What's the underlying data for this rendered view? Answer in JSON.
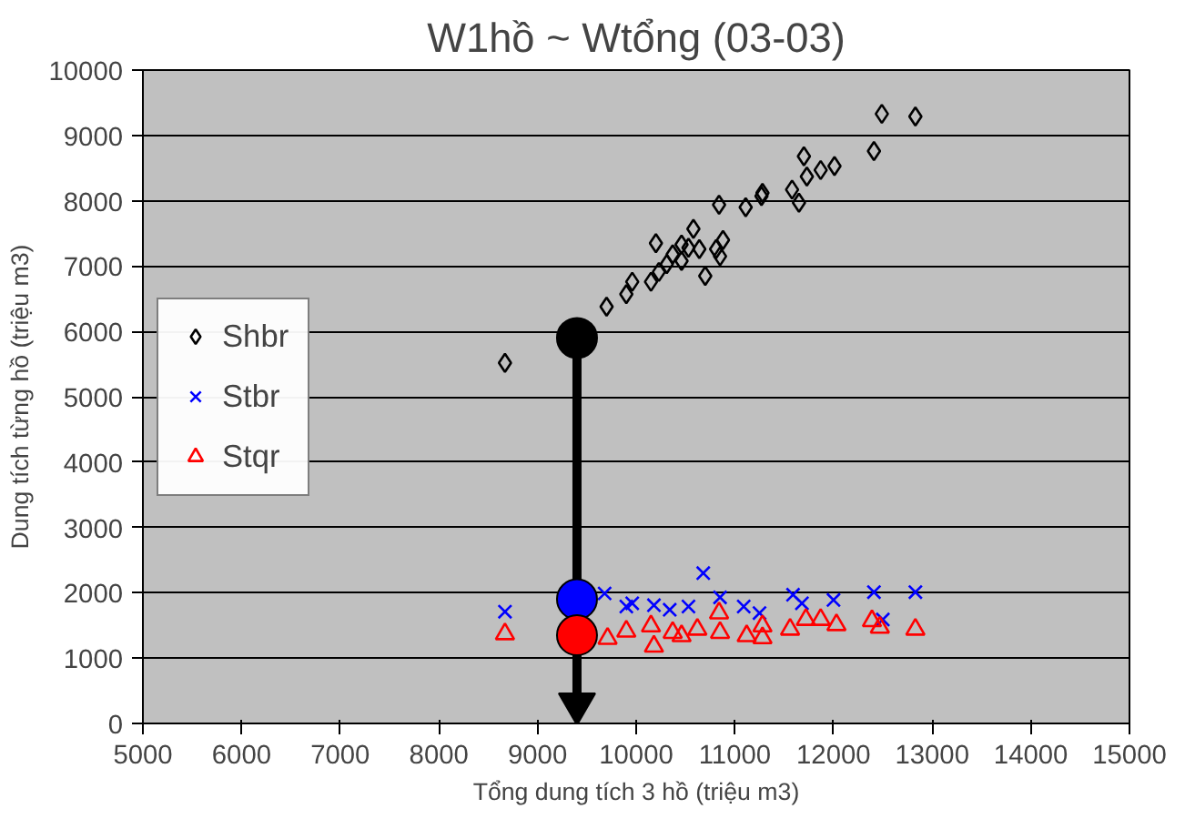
{
  "chart_data": {
    "type": "scatter",
    "title": "W1hồ ~ Wtổng (03-03)",
    "xlabel": "Tổng dung tích 3 hồ (triệu m3)",
    "ylabel": "Dung tích từng hồ (triệu m3)",
    "xlim": [
      5000,
      15000
    ],
    "ylim": [
      0,
      10000
    ],
    "xticks": [
      5000,
      6000,
      7000,
      8000,
      9000,
      10000,
      11000,
      12000,
      13000,
      14000,
      15000
    ],
    "yticks": [
      0,
      1000,
      2000,
      3000,
      4000,
      5000,
      6000,
      7000,
      8000,
      9000,
      10000
    ],
    "grid": "y",
    "legend": "left",
    "series": [
      {
        "name": "Shbr",
        "color": "#000000",
        "marker": "diamond",
        "x": [
          8670,
          9700,
          9900,
          9960,
          10150,
          10200,
          10230,
          10310,
          10370,
          10460,
          10530,
          10580,
          10460,
          10640,
          10700,
          10840,
          10810,
          10850,
          10880,
          11110,
          11280,
          11270,
          11580,
          11650,
          11700,
          11730,
          11870,
          12010,
          12410,
          12490,
          12830
        ],
        "values": [
          5520,
          6380,
          6570,
          6760,
          6760,
          7350,
          6910,
          7030,
          7180,
          7330,
          7280,
          7570,
          7080,
          7260,
          6850,
          7940,
          7260,
          7150,
          7400,
          7900,
          8120,
          8070,
          8170,
          7970,
          8680,
          8370,
          8470,
          8530,
          8760,
          9330,
          9290
        ]
      },
      {
        "name": "Stbr",
        "color": "#0000ff",
        "marker": "cross",
        "x": [
          8670,
          9680,
          9900,
          9960,
          10180,
          10340,
          10530,
          10680,
          10850,
          11090,
          11250,
          11590,
          11680,
          12000,
          12410,
          12500,
          12830
        ],
        "values": [
          1710,
          1990,
          1790,
          1840,
          1810,
          1740,
          1790,
          2300,
          1930,
          1790,
          1690,
          1970,
          1840,
          1890,
          2010,
          1590,
          2010
        ]
      },
      {
        "name": "Stqr",
        "color": "#ff0000",
        "marker": "triangle",
        "x": [
          8670,
          9710,
          9900,
          10180,
          10150,
          10370,
          10460,
          10620,
          10840,
          10850,
          11120,
          11280,
          11280,
          11560,
          11720,
          11870,
          12030,
          12390,
          12470,
          12830
        ],
        "values": [
          1370,
          1300,
          1410,
          1180,
          1490,
          1390,
          1340,
          1440,
          1690,
          1390,
          1340,
          1310,
          1490,
          1440,
          1590,
          1590,
          1510,
          1570,
          1470,
          1440
        ]
      },
      {
        "type": "line",
        "color": "#000000",
        "marker": "triangle",
        "x": [
          9400,
          9400
        ],
        "values": [
          5900,
          300
        ]
      },
      {
        "marker": "circle",
        "colors": [
          "#000000",
          "#0000ff",
          "#ff0000"
        ],
        "x": [
          9400,
          9400,
          9400
        ],
        "values": [
          5900,
          1900,
          1350
        ]
      }
    ]
  }
}
